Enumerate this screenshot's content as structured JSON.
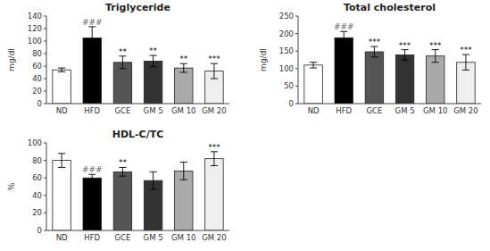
{
  "chart_data": [
    {
      "type": "bar",
      "title": "Triglyceride",
      "ylabel": "mg/dl",
      "categories": [
        "ND",
        "HFD",
        "GCE",
        "GM 5",
        "GM 10",
        "GM 20"
      ],
      "values": [
        54,
        105,
        66,
        68,
        57,
        52
      ],
      "errors": [
        3,
        18,
        10,
        9,
        7,
        12
      ],
      "colors": [
        "#ffffff",
        "#000000",
        "#555555",
        "#333333",
        "#aaaaaa",
        "#eeeeee"
      ],
      "annotations": [
        null,
        {
          "text": "###",
          "color": "#666666"
        },
        {
          "text": "**",
          "color": "#000000"
        },
        {
          "text": "**",
          "color": "#000000"
        },
        {
          "text": "**",
          "color": "#000000"
        },
        {
          "text": "***",
          "color": "#000000"
        }
      ],
      "ylim": [
        0,
        140
      ],
      "yticks": [
        0,
        20,
        40,
        60,
        80,
        100,
        120,
        140
      ],
      "grid": false
    },
    {
      "type": "bar",
      "title": "Total cholesterol",
      "ylabel": "mg/dl",
      "categories": [
        "ND",
        "HFD",
        "GCE",
        "GM 5",
        "GM 10",
        "GM 20"
      ],
      "values": [
        110,
        188,
        148,
        139,
        136,
        118
      ],
      "errors": [
        8,
        18,
        15,
        15,
        18,
        22
      ],
      "colors": [
        "#ffffff",
        "#000000",
        "#555555",
        "#333333",
        "#aaaaaa",
        "#eeeeee"
      ],
      "annotations": [
        null,
        {
          "text": "###",
          "color": "#666666"
        },
        {
          "text": "***",
          "color": "#000000"
        },
        {
          "text": "***",
          "color": "#000000"
        },
        {
          "text": "***",
          "color": "#000000"
        },
        {
          "text": "***",
          "color": "#000000"
        }
      ],
      "ylim": [
        0,
        250
      ],
      "yticks": [
        0,
        50,
        100,
        150,
        200,
        250
      ],
      "grid": false
    },
    {
      "type": "bar",
      "title": "HDL-C/TC",
      "ylabel": "%",
      "categories": [
        "ND",
        "HFD",
        "GCE",
        "GM 5",
        "GM 10",
        "GM 20"
      ],
      "values": [
        80,
        60,
        67,
        57,
        68,
        82
      ],
      "errors": [
        8,
        4,
        5,
        10,
        10,
        8
      ],
      "colors": [
        "#ffffff",
        "#000000",
        "#555555",
        "#333333",
        "#aaaaaa",
        "#eeeeee"
      ],
      "annotations": [
        null,
        {
          "text": "###",
          "color": "#666666"
        },
        {
          "text": "**",
          "color": "#000000"
        },
        null,
        null,
        {
          "text": "***",
          "color": "#000000"
        }
      ],
      "ylim": [
        0,
        100
      ],
      "yticks": [
        0,
        20,
        40,
        60,
        80,
        100
      ],
      "grid": false
    }
  ]
}
